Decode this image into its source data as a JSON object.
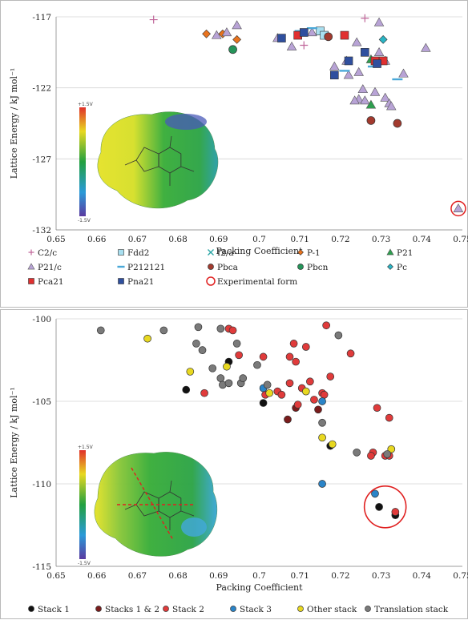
{
  "chart_data": [
    {
      "type": "scatter",
      "title": "",
      "xlabel": "Packing Coefficient",
      "ylabel": "Lattice Energy / kJ mol⁻¹",
      "xlim": [
        0.65,
        0.75
      ],
      "ylim": [
        -132,
        -117
      ],
      "xticks": [
        "0.65",
        "0.66",
        "0.67",
        "0.68",
        "0.69",
        "0.7",
        "0.71",
        "0.72",
        "0.73",
        "0.74",
        "0.75"
      ],
      "yticks": [
        "-117",
        "-122",
        "-127",
        "-132"
      ],
      "grid": "horizontal",
      "legend_placement": "bottom",
      "inset": {
        "scale_max": "+1.5V",
        "scale_min": "-1.5V"
      },
      "series": [
        {
          "name": "C2/c",
          "marker": "plus",
          "color": "#c0669a",
          "points": [
            [
              0.674,
              -117.2
            ],
            [
              0.711,
              -119.0
            ],
            [
              0.726,
              -117.1
            ]
          ]
        },
        {
          "name": "Fdd2",
          "marker": "square",
          "color": "#a8dff0",
          "points": [
            [
              0.715,
              -118.0
            ],
            [
              0.716,
              -118.3
            ]
          ]
        },
        {
          "name": "I2/a",
          "marker": "x",
          "color": "#2aa6a6",
          "points": []
        },
        {
          "name": "P-1",
          "marker": "diamond",
          "color": "#e8731e",
          "points": [
            [
              0.687,
              -118.2
            ],
            [
              0.691,
              -118.2
            ],
            [
              0.6945,
              -118.6
            ]
          ]
        },
        {
          "name": "P21",
          "marker": "triangle",
          "color": "#2e9e4f",
          "points": [
            [
              0.7275,
              -120.0
            ],
            [
              0.7275,
              -123.2
            ]
          ]
        },
        {
          "name": "P21/c",
          "marker": "triangle",
          "color": "#b8a3d6",
          "points": [
            [
              0.6895,
              -118.3
            ],
            [
              0.692,
              -118.1
            ],
            [
              0.6945,
              -117.6
            ],
            [
              0.7045,
              -118.5
            ],
            [
              0.708,
              -119.1
            ],
            [
              0.713,
              -118.1
            ],
            [
              0.7185,
              -120.5
            ],
            [
              0.7215,
              -120.1
            ],
            [
              0.722,
              -121.1
            ],
            [
              0.724,
              -118.8
            ],
            [
              0.7245,
              -120.9
            ],
            [
              0.7255,
              -122.1
            ],
            [
              0.7285,
              -122.3
            ],
            [
              0.7245,
              -122.8
            ],
            [
              0.7235,
              -122.9
            ],
            [
              0.726,
              -122.9
            ],
            [
              0.7295,
              -117.4
            ],
            [
              0.7295,
              -119.5
            ],
            [
              0.731,
              -120.1
            ],
            [
              0.731,
              -122.7
            ],
            [
              0.732,
              -123.1
            ],
            [
              0.7325,
              -123.3
            ],
            [
              0.7355,
              -121.0
            ],
            [
              0.741,
              -119.2
            ],
            [
              0.749,
              -130.5
            ]
          ]
        },
        {
          "name": "P212121",
          "marker": "dash",
          "color": "#4aa8d8",
          "points": [
            [
              0.71,
              -118.0
            ],
            [
              0.713,
              -117.8
            ],
            [
              0.721,
              -120.8
            ],
            [
              0.728,
              -120.5
            ],
            [
              0.734,
              -121.4
            ]
          ]
        },
        {
          "name": "Pbca",
          "marker": "circle",
          "color": "#a33a2e",
          "points": [
            [
              0.717,
              -118.4
            ],
            [
              0.7275,
              -124.3
            ],
            [
              0.734,
              -124.5
            ]
          ]
        },
        {
          "name": "Pbcn",
          "marker": "circle",
          "color": "#25955a",
          "points": [
            [
              0.6935,
              -119.3
            ]
          ]
        },
        {
          "name": "Pc",
          "marker": "diamond",
          "color": "#2ab5c5",
          "points": [
            [
              0.7305,
              -118.6
            ]
          ]
        },
        {
          "name": "Pca21",
          "marker": "square",
          "color": "#e03030",
          "points": [
            [
              0.7095,
              -118.3
            ],
            [
              0.721,
              -118.3
            ],
            [
              0.7285,
              -120.1
            ],
            [
              0.7305,
              -120.1
            ]
          ]
        },
        {
          "name": "Pna21",
          "marker": "square",
          "color": "#2f4f9e",
          "points": [
            [
              0.7055,
              -118.5
            ],
            [
              0.711,
              -118.1
            ],
            [
              0.7185,
              -121.1
            ],
            [
              0.722,
              -120.1
            ],
            [
              0.726,
              -119.5
            ],
            [
              0.729,
              -120.3
            ]
          ]
        },
        {
          "name": "Experimental form",
          "marker": "ring",
          "color": "#e02020",
          "points": [
            [
              0.749,
              -130.5
            ]
          ]
        }
      ]
    },
    {
      "type": "scatter",
      "title": "",
      "xlabel": "Packing Coefficient",
      "ylabel": "Lattice Energy / kJ mol⁻¹",
      "xlim": [
        0.65,
        0.75
      ],
      "ylim": [
        -115,
        -100
      ],
      "xticks": [
        "0.65",
        "0.66",
        "0.67",
        "0.68",
        "0.69",
        "0.7",
        "0.71",
        "0.72",
        "0.73",
        "0.74",
        "0.75"
      ],
      "yticks": [
        "-100",
        "-105",
        "-110",
        "-115"
      ],
      "grid": "horizontal",
      "legend_placement": "bottom",
      "inset": {
        "scale_max": "+1.5V",
        "scale_min": "-1.5V"
      },
      "annotation": {
        "type": "ring",
        "center": [
          0.731,
          -111.4
        ]
      },
      "series": [
        {
          "name": "Stack 1",
          "marker": "circle",
          "color": "#111111",
          "points": [
            [
              0.682,
              -104.3
            ],
            [
              0.6925,
              -102.6
            ],
            [
              0.701,
              -105.1
            ],
            [
              0.7175,
              -107.7
            ],
            [
              0.7295,
              -111.4
            ],
            [
              0.7335,
              -111.9
            ]
          ]
        },
        {
          "name": "Stacks 1 & 2",
          "marker": "circle",
          "color": "#7a1c1c",
          "points": [
            [
              0.707,
              -106.1
            ],
            [
              0.709,
              -105.4
            ],
            [
              0.7145,
              -105.5
            ]
          ]
        },
        {
          "name": "Stack 2",
          "marker": "circle",
          "color": "#e03b3b",
          "points": [
            [
              0.6865,
              -104.5
            ],
            [
              0.6925,
              -100.6
            ],
            [
              0.6935,
              -100.7
            ],
            [
              0.695,
              -102.2
            ],
            [
              0.701,
              -102.3
            ],
            [
              0.7015,
              -104.6
            ],
            [
              0.7045,
              -104.4
            ],
            [
              0.7055,
              -104.6
            ],
            [
              0.7075,
              -103.9
            ],
            [
              0.7075,
              -102.3
            ],
            [
              0.7085,
              -101.5
            ],
            [
              0.709,
              -102.6
            ],
            [
              0.7095,
              -105.2
            ],
            [
              0.7105,
              -104.2
            ],
            [
              0.7115,
              -101.7
            ],
            [
              0.7125,
              -103.8
            ],
            [
              0.7135,
              -104.9
            ],
            [
              0.7155,
              -104.5
            ],
            [
              0.716,
              -104.6
            ],
            [
              0.7175,
              -103.5
            ],
            [
              0.7165,
              -100.4
            ],
            [
              0.7225,
              -102.1
            ],
            [
              0.728,
              -108.1
            ],
            [
              0.7275,
              -108.3
            ],
            [
              0.729,
              -105.4
            ],
            [
              0.731,
              -108.3
            ],
            [
              0.7335,
              -111.7
            ],
            [
              0.732,
              -106.0
            ],
            [
              0.732,
              -108.3
            ]
          ]
        },
        {
          "name": "Stack 3",
          "marker": "circle",
          "color": "#2a84c8",
          "points": [
            [
              0.7155,
              -110.0
            ],
            [
              0.7285,
              -110.6
            ],
            [
              0.701,
              -104.2
            ],
            [
              0.7155,
              -105.0
            ]
          ]
        },
        {
          "name": "Other stack",
          "marker": "circle",
          "color": "#e8d820",
          "points": [
            [
              0.6725,
              -101.2
            ],
            [
              0.683,
              -103.2
            ],
            [
              0.692,
              -102.9
            ],
            [
              0.7025,
              -104.5
            ],
            [
              0.7115,
              -104.4
            ],
            [
              0.7155,
              -107.2
            ],
            [
              0.718,
              -107.6
            ],
            [
              0.7325,
              -107.9
            ]
          ]
        },
        {
          "name": "Translation stack",
          "marker": "circle",
          "color": "#7a7a7a",
          "points": [
            [
              0.661,
              -100.7
            ],
            [
              0.6765,
              -100.7
            ],
            [
              0.685,
              -100.5
            ],
            [
              0.6845,
              -101.5
            ],
            [
              0.686,
              -101.9
            ],
            [
              0.6885,
              -103.0
            ],
            [
              0.6905,
              -100.6
            ],
            [
              0.6905,
              -103.6
            ],
            [
              0.691,
              -104.0
            ],
            [
              0.6925,
              -103.9
            ],
            [
              0.6945,
              -101.5
            ],
            [
              0.6955,
              -103.9
            ],
            [
              0.696,
              -103.6
            ],
            [
              0.6995,
              -102.8
            ],
            [
              0.702,
              -104.0
            ],
            [
              0.7195,
              -101.0
            ],
            [
              0.7155,
              -106.3
            ],
            [
              0.724,
              -108.1
            ],
            [
              0.7315,
              -108.2
            ]
          ]
        }
      ]
    }
  ]
}
